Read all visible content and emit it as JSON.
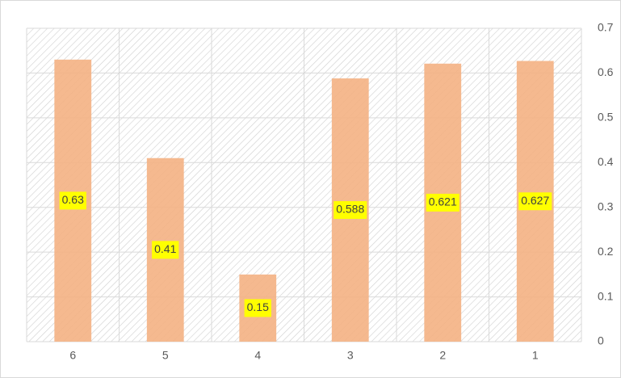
{
  "chart_data": {
    "type": "bar",
    "categories": [
      "6",
      "5",
      "4",
      "3",
      "2",
      "1"
    ],
    "values": [
      0.63,
      0.41,
      0.15,
      0.588,
      0.621,
      0.627
    ],
    "color": "#f4b183",
    "label_background": "#ffff00",
    "ylim": [
      0,
      0.7
    ],
    "yticks": [
      0,
      0.1,
      0.2,
      0.3,
      0.4,
      0.5,
      0.6,
      0.7
    ],
    "y_axis_side": "right",
    "grid": true
  }
}
